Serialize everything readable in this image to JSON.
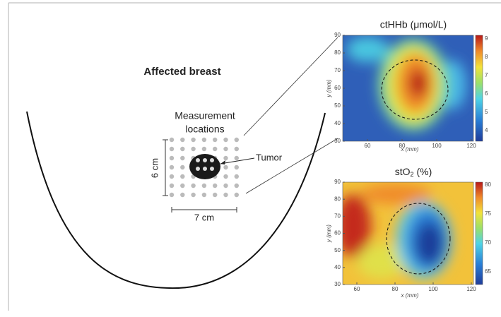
{
  "labels": {
    "affected_breast": "Affected breast",
    "measurement": [
      "Measurement",
      "locations"
    ],
    "tumor": "Tumor",
    "height": "6 cm",
    "width": "7 cm"
  },
  "maps": [
    {
      "title": "ctHHb (μmol/L)",
      "x_label": "x (mm)",
      "y_label": "y (mm)",
      "x_ticks": [
        60,
        80,
        100,
        120
      ],
      "y_ticks": [
        90,
        80,
        70,
        60,
        50,
        40,
        30
      ],
      "colorbar_ticks": [
        9,
        8,
        7,
        6,
        5,
        4
      ]
    },
    {
      "title": {
        "main": "stO",
        "sub": "2",
        "unit": "(%)"
      },
      "x_label": "x (mm)",
      "y_label": "y (mm)",
      "x_ticks": [
        60,
        80,
        100,
        120
      ],
      "y_ticks": [
        90,
        80,
        70,
        60,
        50,
        40,
        30
      ],
      "colorbar_ticks": [
        80,
        75,
        70,
        65
      ]
    }
  ]
}
